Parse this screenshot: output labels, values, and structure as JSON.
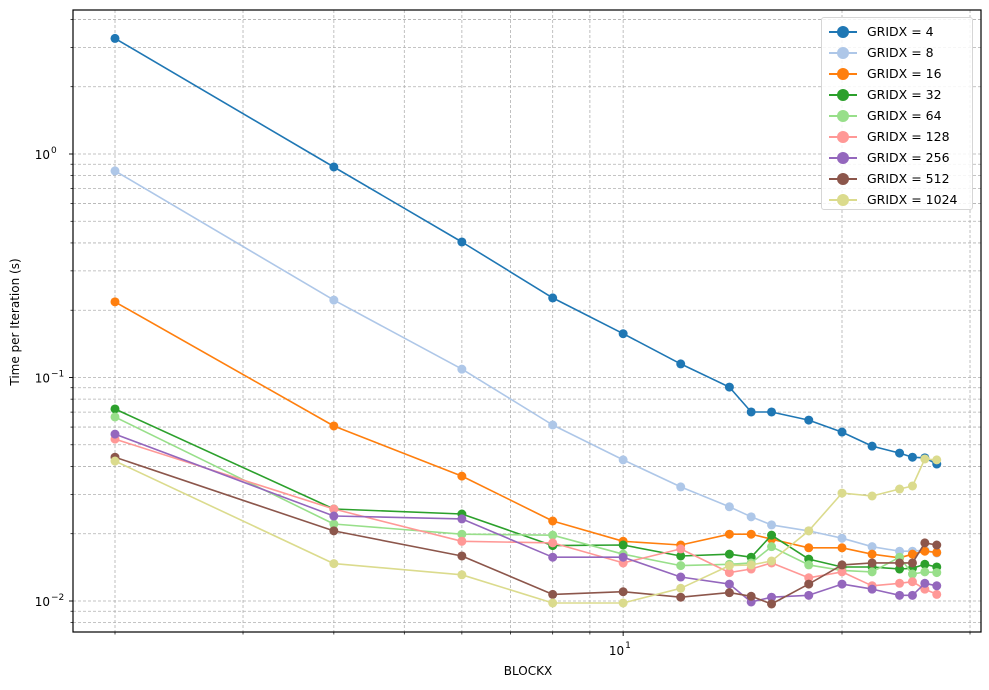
{
  "chart_data": {
    "type": "line",
    "title": "",
    "xlabel": "BLOCKX",
    "ylabel": "Time per Iteration (s)",
    "xscale": "log",
    "yscale": "log",
    "xlim": [
      1.62,
      33
    ],
    "ylim": [
      0.0075,
      4.4
    ],
    "grid": true,
    "legend_position": "upper right",
    "x": [
      2,
      4,
      6,
      8,
      10,
      12,
      14,
      15,
      16,
      18,
      20,
      22,
      24,
      25,
      26,
      27
    ],
    "x_major_ticks": [
      {
        "value": 10,
        "label": "10",
        "exp": "1"
      }
    ],
    "y_major_ticks": [
      {
        "value": 1,
        "label": "10",
        "exp": "0"
      },
      {
        "value": 0.1,
        "label": "10",
        "exp": "−1"
      },
      {
        "value": 0.01,
        "label": "10",
        "exp": "−2"
      }
    ],
    "series": [
      {
        "name": "GRIDX = 4",
        "color": "#1f77b4",
        "values": [
          3.29,
          0.875,
          0.404,
          0.227,
          0.157,
          0.115,
          0.0906,
          0.0701,
          0.0701,
          0.0645,
          0.057,
          0.0493,
          0.0459,
          0.044,
          0.0437,
          0.041
        ]
      },
      {
        "name": "GRIDX = 8",
        "color": "#aec7e8",
        "values": [
          0.84,
          0.222,
          0.109,
          0.0613,
          0.0428,
          0.0324,
          0.0264,
          0.0238,
          0.0219,
          0.0206,
          0.0191,
          0.0175,
          0.0167,
          0.0167,
          0.0169,
          0.0164
        ]
      },
      {
        "name": "GRIDX = 16",
        "color": "#ff7f0e",
        "values": [
          0.218,
          0.0607,
          0.0362,
          0.0228,
          0.0185,
          0.0178,
          0.0199,
          0.0199,
          0.0189,
          0.0173,
          0.0173,
          0.0162,
          0.0156,
          0.0162,
          0.0167,
          0.0165
        ]
      },
      {
        "name": "GRIDX = 32",
        "color": "#2ca02c",
        "values": [
          0.0723,
          0.0258,
          0.0245,
          0.0177,
          0.0178,
          0.0159,
          0.0162,
          0.0157,
          0.0197,
          0.0154,
          0.0142,
          0.0142,
          0.0139,
          0.014,
          0.0146,
          0.0142
        ]
      },
      {
        "name": "GRIDX = 64",
        "color": "#98df8a",
        "values": [
          0.0666,
          0.0221,
          0.0199,
          0.0197,
          0.0162,
          0.0144,
          0.0146,
          0.0148,
          0.0175,
          0.0145,
          0.0137,
          0.0135,
          0.0157,
          0.0132,
          0.0135,
          0.0134
        ]
      },
      {
        "name": "GRIDX = 128",
        "color": "#ff9896",
        "values": [
          0.053,
          0.0258,
          0.0185,
          0.0182,
          0.0148,
          0.0171,
          0.0134,
          0.0139,
          0.0148,
          0.0127,
          0.0135,
          0.0117,
          0.012,
          0.0122,
          0.0113,
          0.0107
        ]
      },
      {
        "name": "GRIDX = 256",
        "color": "#9467bd",
        "values": [
          0.0558,
          0.024,
          0.0233,
          0.0157,
          0.0157,
          0.0128,
          0.0119,
          0.0099,
          0.0104,
          0.0106,
          0.0119,
          0.0113,
          0.0106,
          0.0106,
          0.012,
          0.0117
        ]
      },
      {
        "name": "GRIDX = 512",
        "color": "#8c564b",
        "values": [
          0.044,
          0.0206,
          0.0159,
          0.0107,
          0.011,
          0.0104,
          0.0109,
          0.0105,
          0.0097,
          0.0119,
          0.0145,
          0.0148,
          0.0148,
          0.0148,
          0.0182,
          0.0178
        ]
      },
      {
        "name": "GRIDX = 1024",
        "color": "#dbdb8d",
        "values": [
          0.0423,
          0.0147,
          0.0131,
          0.0098,
          0.0098,
          0.0114,
          0.0144,
          0.0145,
          0.0151,
          0.0206,
          0.0304,
          0.0295,
          0.0317,
          0.0327,
          0.0432,
          0.0428
        ]
      }
    ]
  },
  "axes": {
    "xlabel": "BLOCKX",
    "ylabel": "Time per Iteration (s)"
  },
  "legend": {
    "items": [
      {
        "label": "GRIDX = 4",
        "color": "#1f77b4"
      },
      {
        "label": "GRIDX = 8",
        "color": "#aec7e8"
      },
      {
        "label": "GRIDX = 16",
        "color": "#ff7f0e"
      },
      {
        "label": "GRIDX = 32",
        "color": "#2ca02c"
      },
      {
        "label": "GRIDX = 64",
        "color": "#98df8a"
      },
      {
        "label": "GRIDX = 128",
        "color": "#ff9896"
      },
      {
        "label": "GRIDX = 256",
        "color": "#9467bd"
      },
      {
        "label": "GRIDX = 512",
        "color": "#8c564b"
      },
      {
        "label": "GRIDX = 1024",
        "color": "#dbdb8d"
      }
    ]
  }
}
